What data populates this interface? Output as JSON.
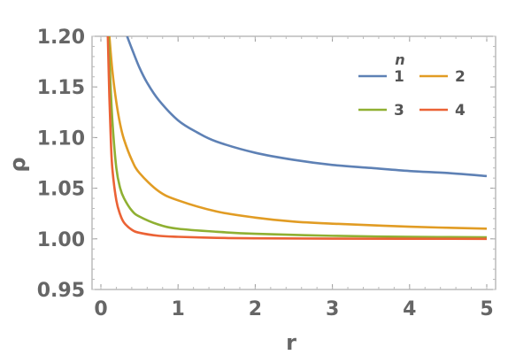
{
  "chart_data": {
    "type": "line",
    "xlabel": "r",
    "ylabel": "ρ",
    "xlim": [
      0,
      5
    ],
    "ylim": [
      0.95,
      1.2
    ],
    "x_ticks": [
      0,
      1,
      2,
      3,
      4,
      5
    ],
    "x_tick_labels": [
      "0",
      "1",
      "2",
      "3",
      "4",
      "5"
    ],
    "y_ticks": [
      0.95,
      1.0,
      1.05,
      1.1,
      1.15,
      1.2
    ],
    "y_tick_labels": [
      "0.95",
      "1.00",
      "1.05",
      "1.10",
      "1.15",
      "1.20"
    ],
    "grid": false,
    "legend": {
      "title": "n",
      "placement": "top-right"
    },
    "series": [
      {
        "name": "1",
        "color": "#5E81B5",
        "x": [
          0.34,
          0.4,
          0.5,
          0.6,
          0.75,
          1.0,
          1.25,
          1.5,
          2.0,
          2.5,
          3.0,
          3.5,
          4.0,
          4.5,
          5.0
        ],
        "y": [
          1.2,
          1.188,
          1.169,
          1.154,
          1.137,
          1.117,
          1.105,
          1.096,
          1.085,
          1.078,
          1.073,
          1.07,
          1.067,
          1.065,
          1.062
        ]
      },
      {
        "name": "2",
        "color": "#E19C24",
        "x": [
          0.11,
          0.15,
          0.2,
          0.25,
          0.3,
          0.4,
          0.5,
          0.75,
          1.0,
          1.5,
          2.0,
          2.5,
          3.0,
          4.0,
          5.0
        ],
        "y": [
          1.2,
          1.165,
          1.135,
          1.113,
          1.098,
          1.078,
          1.065,
          1.047,
          1.038,
          1.027,
          1.021,
          1.017,
          1.015,
          1.012,
          1.01
        ]
      },
      {
        "name": "3",
        "color": "#8FB032",
        "x": [
          0.1,
          0.12,
          0.15,
          0.2,
          0.25,
          0.3,
          0.4,
          0.5,
          0.75,
          1.0,
          1.5,
          2.0,
          3.0,
          4.0,
          5.0
        ],
        "y": [
          1.2,
          1.16,
          1.115,
          1.07,
          1.05,
          1.04,
          1.028,
          1.022,
          1.014,
          1.01,
          1.007,
          1.005,
          1.003,
          1.002,
          1.0015
        ]
      },
      {
        "name": "4",
        "color": "#EB6235",
        "x": [
          0.09,
          0.11,
          0.13,
          0.15,
          0.2,
          0.25,
          0.3,
          0.4,
          0.5,
          0.75,
          1.0,
          1.5,
          2.0,
          3.0,
          5.0
        ],
        "y": [
          1.2,
          1.14,
          1.095,
          1.068,
          1.038,
          1.024,
          1.016,
          1.009,
          1.006,
          1.003,
          1.002,
          1.001,
          1.0005,
          1.0002,
          1.0
        ]
      }
    ]
  }
}
